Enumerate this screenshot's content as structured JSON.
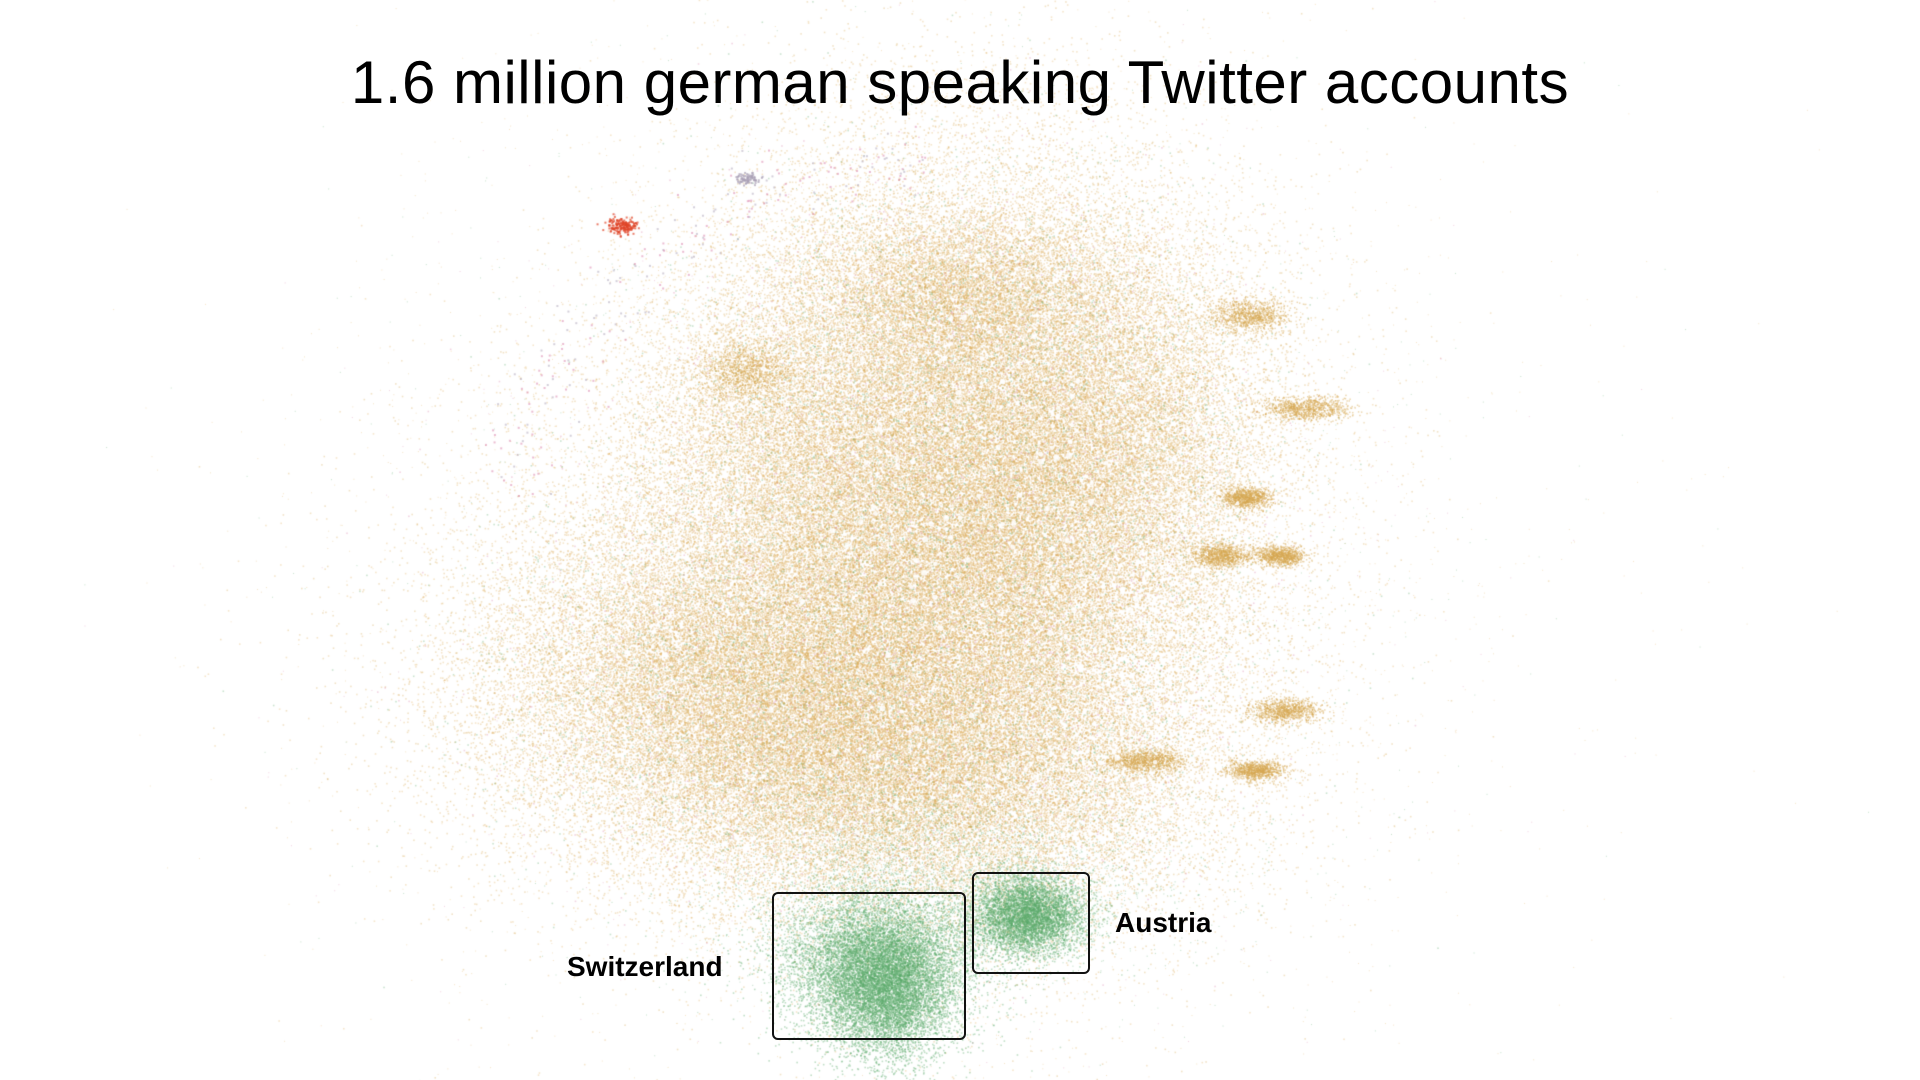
{
  "title": "1.6 million german speaking Twitter accounts",
  "regions": [
    {
      "label": "Switzerland",
      "color": "#5aa86a"
    },
    {
      "label": "Austria",
      "color": "#5aa86a"
    }
  ],
  "colors": {
    "main_cluster": "#e0ae5c",
    "main_cluster_alt": "#d4a64f",
    "green_cluster": "#5aa86a",
    "accent_red": "#e0462a",
    "accent_pink": "#d77aa6",
    "accent_grey": "#a9a0b5",
    "box_border": "#111111"
  }
}
